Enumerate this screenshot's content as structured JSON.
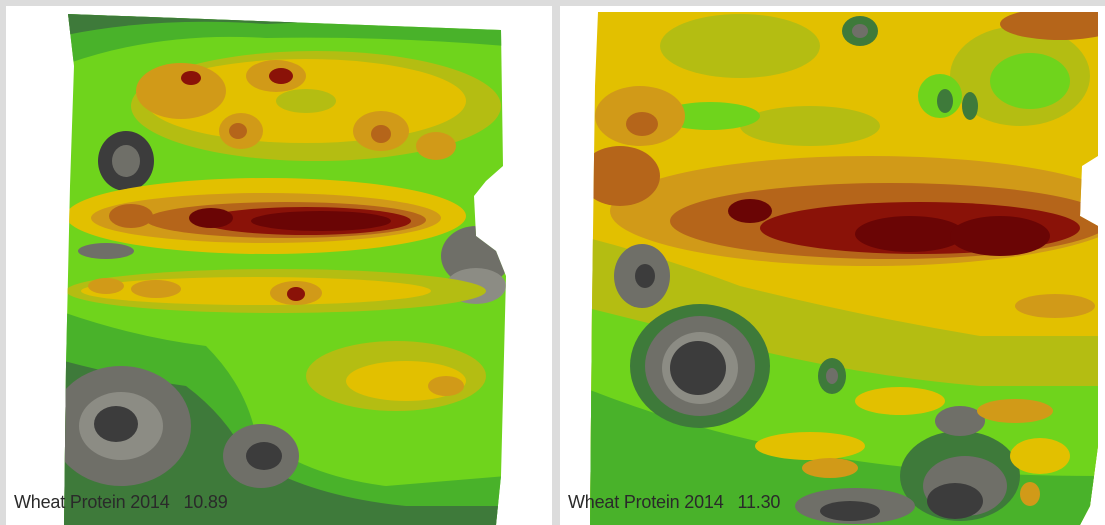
{
  "maps": [
    {
      "label": "Wheat Protein 2014",
      "value": "10.89"
    },
    {
      "label": "Wheat Protein 2014",
      "value": "11.30"
    }
  ],
  "colors": {
    "darkgray": "#3c3c3c",
    "gray": "#6f6f68",
    "lightgray": "#8c8c84",
    "darkgreen": "#3e7a3a",
    "green": "#49b22a",
    "lightgreen": "#6fd41c",
    "yellowgreen": "#b4bd12",
    "yellow": "#e2c000",
    "orange": "#d19a18",
    "brown": "#b5651a",
    "darkred": "#8a1208",
    "deepred": "#6a0505"
  }
}
